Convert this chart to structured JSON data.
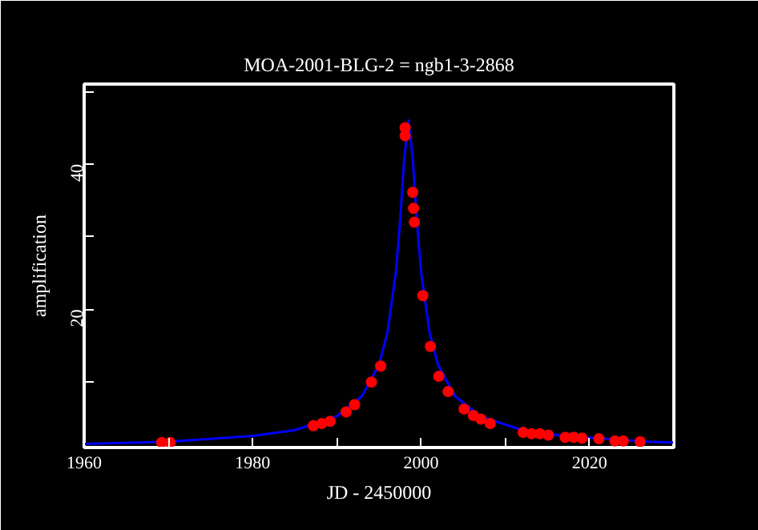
{
  "chart_data": {
    "type": "line",
    "title": "MOA-2001-BLG-2 = ngb1-3-2868",
    "xlabel": "JD - 2450000",
    "ylabel": "amplification",
    "xlim": [
      1960,
      2030
    ],
    "ylim": [
      1,
      51
    ],
    "xticks": [
      1960,
      {
        "value": 1970,
        "label": null
      },
      1980,
      {
        "value": 1990,
        "label": null
      },
      2000,
      {
        "value": 2010,
        "label": null
      },
      2020,
      {
        "value": 2030,
        "label": null
      }
    ],
    "yticks": [
      {
        "value": 10,
        "label": null
      },
      20,
      {
        "value": 30,
        "label": null
      },
      40,
      {
        "value": 50,
        "label": null
      }
    ],
    "grid": false,
    "series": [
      {
        "color": "#0000ff",
        "line_style": "solid",
        "marker": "none",
        "x": [
          1960,
          1970,
          1980,
          1985,
          1990,
          1993,
          1995,
          1996,
          1997,
          1997.5,
          1998,
          1998.5,
          1999,
          1999.5,
          2000,
          2001,
          2002,
          2004,
          2007,
          2012,
          2017,
          2027,
          2030
        ],
        "values": [
          1.5,
          1.8,
          2.6,
          3.4,
          5.3,
          8.1,
          12.4,
          16.8,
          25.1,
          32.1,
          40.8,
          46,
          40.8,
          32.1,
          25.1,
          16.8,
          12.4,
          8.1,
          5.3,
          3.4,
          2.6,
          1.8,
          1.7
        ]
      },
      {
        "type": "scatter",
        "color": "#ff0000",
        "marker": "circle",
        "x": [
          1969.2,
          1970.2,
          1987.2,
          1988.2,
          1989.2,
          1991.1,
          1992.1,
          1994.1,
          1995.2,
          1998.1,
          1998.1,
          1999.0,
          1999.1,
          1999.2,
          2000.2,
          2001.1,
          2002.1,
          2003.2,
          2005.1,
          2006.2,
          2007.1,
          2008.2,
          2012.1,
          2013.1,
          2014.1,
          2015.1,
          2017.1,
          2018.1,
          2019.1,
          2021.1,
          2023.0,
          2024.0,
          2026.0
        ],
        "values": [
          1.7,
          1.7,
          4.0,
          4.3,
          4.6,
          5.9,
          6.9,
          10,
          12.2,
          45.0,
          43.9,
          36.1,
          33.9,
          32.0,
          21.9,
          14.9,
          10.8,
          8.7,
          6.3,
          5.4,
          4.9,
          4.3,
          3.1,
          2.9,
          2.9,
          2.7,
          2.4,
          2.4,
          2.3,
          2.2,
          1.9,
          1.9,
          1.8
        ]
      }
    ]
  }
}
